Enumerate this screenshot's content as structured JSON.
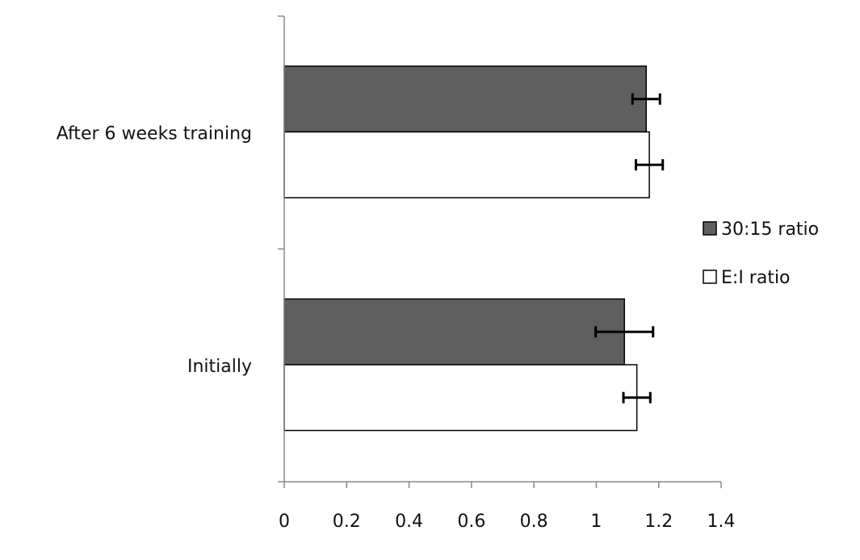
{
  "chart_data": {
    "type": "bar",
    "orientation": "horizontal",
    "title": "",
    "xlabel": "",
    "ylabel": "",
    "categories": [
      "After 6 weeks training",
      "Initially"
    ],
    "series": [
      {
        "name": "30:15 ratio",
        "color": "#5f5f5f",
        "values": [
          1.16,
          1.09
        ],
        "errors": [
          0.044,
          0.092
        ]
      },
      {
        "name": "E:I ratio",
        "color": "#ffffff",
        "values": [
          1.17,
          1.13
        ],
        "errors": [
          0.043,
          0.043
        ]
      }
    ],
    "xlim": [
      0,
      1.4
    ],
    "xticks": [
      "0",
      "0.2",
      "0.4",
      "0.6",
      "0.8",
      "1",
      "1.2",
      "1.4"
    ],
    "grid": false,
    "legend_position": "right"
  }
}
